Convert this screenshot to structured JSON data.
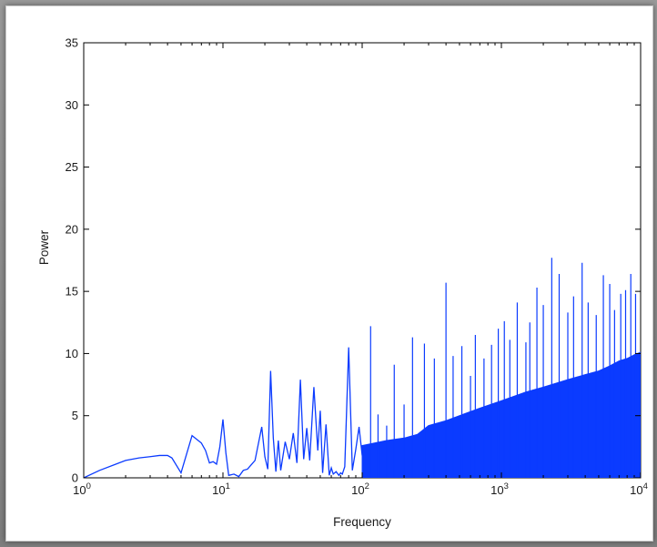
{
  "chart_data": {
    "type": "line",
    "title": "",
    "xlabel": "Frequency",
    "ylabel": "Power",
    "xscale": "log",
    "xlim": [
      1,
      10000
    ],
    "ylim": [
      0,
      35
    ],
    "grid": false,
    "legend": "none",
    "color": "#0b3bff",
    "x_tick_labels": [
      {
        "base": "10",
        "exp": "0"
      },
      {
        "base": "10",
        "exp": "1"
      },
      {
        "base": "10",
        "exp": "2"
      },
      {
        "base": "10",
        "exp": "3"
      },
      {
        "base": "10",
        "exp": "4"
      }
    ],
    "y_tick_labels": [
      "0",
      "5",
      "10",
      "15",
      "20",
      "25",
      "30",
      "35"
    ],
    "series": [
      {
        "values": {
          "x": [
            1,
            1.3,
            1.7,
            2,
            2.5,
            3,
            3.5,
            4,
            4.3,
            5,
            6,
            7,
            7.5,
            8,
            8.5,
            9,
            9.5,
            10,
            10.5,
            11,
            12,
            13,
            14,
            15,
            17,
            19,
            20,
            21,
            22,
            23,
            24,
            25,
            26,
            28,
            30,
            32,
            34,
            36,
            38,
            40,
            42,
            45,
            48,
            50,
            52,
            55,
            58,
            60,
            62,
            65,
            68,
            70,
            72,
            75,
            80,
            85,
            90,
            95,
            100
          ],
          "y": [
            0,
            0.6,
            1.1,
            1.4,
            1.6,
            1.7,
            1.8,
            1.8,
            1.6,
            0.4,
            3.4,
            2.8,
            2.2,
            1.2,
            1.3,
            1.1,
            2.5,
            4.7,
            2.0,
            0.2,
            0.3,
            0.1,
            0.6,
            0.7,
            1.4,
            4.1,
            1.7,
            0.7,
            8.6,
            3.2,
            0.5,
            3.0,
            0.6,
            2.9,
            1.5,
            3.6,
            1.2,
            7.9,
            1.5,
            4.0,
            1.4,
            7.3,
            2.2,
            5.4,
            0.4,
            4.3,
            0.2,
            0.8,
            0.3,
            0.5,
            0.2,
            0.4,
            0.3,
            0.9,
            10.5,
            0.6,
            2.3,
            4.1,
            1.8
          ]
        },
        "envelope": {
          "x": [
            100,
            150,
            200,
            250,
            300,
            400,
            500,
            700,
            1000,
            1500,
            2000,
            3000,
            4000,
            5000,
            6000,
            7000,
            8000,
            9000,
            10000
          ],
          "y": [
            2.6,
            3.0,
            3.2,
            3.5,
            4.2,
            4.6,
            5.0,
            5.6,
            6.2,
            6.9,
            7.3,
            7.9,
            8.3,
            8.6,
            9.0,
            9.4,
            9.6,
            9.9,
            10.1
          ]
        },
        "spikes": {
          "x": [
            115,
            130,
            150,
            170,
            200,
            230,
            280,
            330,
            400,
            450,
            520,
            600,
            650,
            750,
            850,
            950,
            1050,
            1150,
            1300,
            1500,
            1600,
            1800,
            2000,
            2300,
            2600,
            3000,
            3300,
            3800,
            4200,
            4800,
            5400,
            6000,
            6500,
            7200,
            7800,
            8500,
            9200
          ],
          "y": [
            12.2,
            5.1,
            4.2,
            9.1,
            5.9,
            11.3,
            10.8,
            9.6,
            15.7,
            9.8,
            10.6,
            8.2,
            11.5,
            9.6,
            10.7,
            12.0,
            12.6,
            11.1,
            14.1,
            10.9,
            12.5,
            15.3,
            13.9,
            17.7,
            16.4,
            13.3,
            14.6,
            17.3,
            14.1,
            13.1,
            16.3,
            15.6,
            13.5,
            14.8,
            15.1,
            16.4,
            14.8
          ]
        }
      }
    ]
  }
}
